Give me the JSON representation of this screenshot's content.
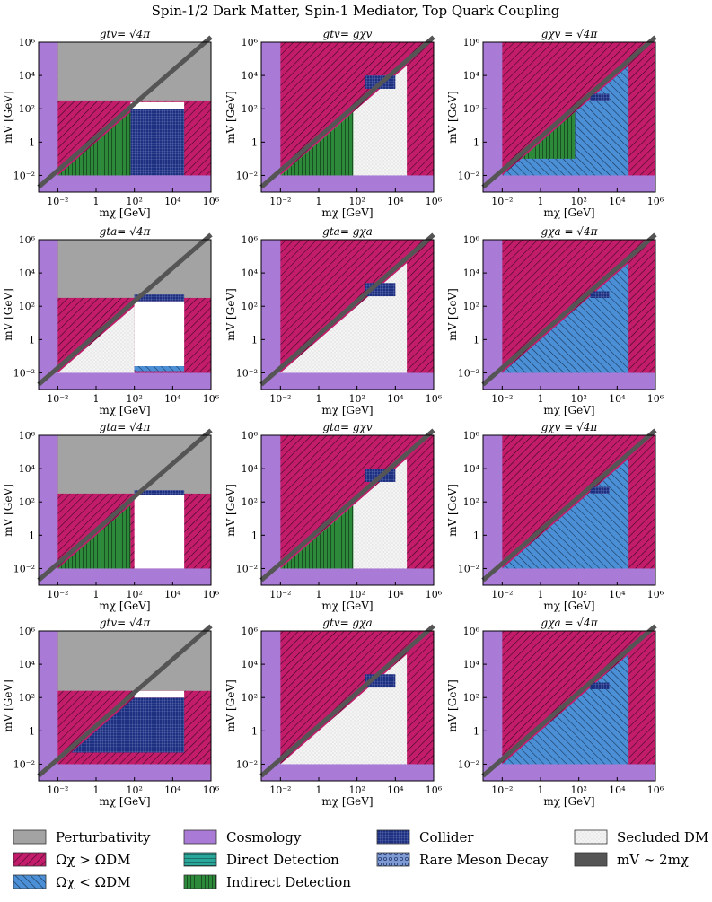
{
  "figure": {
    "title": "Spin-1/2 Dark Matter, Spin-1 Mediator, Top Quark Coupling"
  },
  "colors": {
    "perturbativity": "#a3a3a3",
    "overabundant": "#c21c6b",
    "underabundant": "#4b8fd6",
    "cosmology": "#a97bd6",
    "direct": "#2aa79b",
    "indirect": "#2d8a3a",
    "collider": "#1d2f80",
    "meson": "#7f9bd6",
    "secluded": "#e8e8e8",
    "resonance": "#555555"
  },
  "axes": {
    "xlabel": "mχ [GeV]",
    "ylabel": "mV [GeV]",
    "xticks": [
      "10⁻²",
      "1",
      "10²",
      "10⁴",
      "10⁶"
    ],
    "yticks": [
      "10⁻²",
      "1",
      "10²",
      "10⁴",
      "10⁶"
    ]
  },
  "chart_data": [
    {
      "type": "area",
      "panel": "row1-col1",
      "title": "gtv= √4π",
      "xlabel": "mχ [GeV]",
      "ylabel": "mV [GeV]",
      "xlim": [
        0.001,
        1000000
      ],
      "ylim": [
        0.001,
        1000000
      ],
      "log": true
    },
    {
      "type": "area",
      "panel": "row1-col2",
      "title": "gtv= gχv",
      "xlabel": "mχ [GeV]",
      "ylabel": "mV [GeV]",
      "xlim": [
        0.001,
        1000000
      ],
      "ylim": [
        0.001,
        1000000
      ],
      "log": true
    },
    {
      "type": "area",
      "panel": "row1-col3",
      "title": "gχv = √4π",
      "xlabel": "mχ [GeV]",
      "ylabel": "mV [GeV]",
      "xlim": [
        0.001,
        1000000
      ],
      "ylim": [
        0.001,
        1000000
      ],
      "log": true
    },
    {
      "type": "area",
      "panel": "row2-col1",
      "title": "gta= √4π",
      "xlabel": "mχ [GeV]",
      "ylabel": "mV [GeV]",
      "xlim": [
        0.001,
        1000000
      ],
      "ylim": [
        0.001,
        1000000
      ],
      "log": true
    },
    {
      "type": "area",
      "panel": "row2-col2",
      "title": "gta= gχa",
      "xlabel": "mχ [GeV]",
      "ylabel": "mV [GeV]",
      "xlim": [
        0.001,
        1000000
      ],
      "ylim": [
        0.001,
        1000000
      ],
      "log": true
    },
    {
      "type": "area",
      "panel": "row2-col3",
      "title": "gχa = √4π",
      "xlabel": "mχ [GeV]",
      "ylabel": "mV [GeV]",
      "xlim": [
        0.001,
        1000000
      ],
      "ylim": [
        0.001,
        1000000
      ],
      "log": true
    },
    {
      "type": "area",
      "panel": "row3-col1",
      "title": "gta= √4π",
      "xlabel": "mχ [GeV]",
      "ylabel": "mV [GeV]",
      "xlim": [
        0.001,
        1000000
      ],
      "ylim": [
        0.001,
        1000000
      ],
      "log": true
    },
    {
      "type": "area",
      "panel": "row3-col2",
      "title": "gta= gχv",
      "xlabel": "mχ [GeV]",
      "ylabel": "mV [GeV]",
      "xlim": [
        0.001,
        1000000
      ],
      "ylim": [
        0.001,
        1000000
      ],
      "log": true
    },
    {
      "type": "area",
      "panel": "row3-col3",
      "title": "gχv = √4π",
      "xlabel": "mχ [GeV]",
      "ylabel": "mV [GeV]",
      "xlim": [
        0.001,
        1000000
      ],
      "ylim": [
        0.001,
        1000000
      ],
      "log": true
    },
    {
      "type": "area",
      "panel": "row4-col1",
      "title": "gtv= √4π",
      "xlabel": "mχ [GeV]",
      "ylabel": "mV [GeV]",
      "xlim": [
        0.001,
        1000000
      ],
      "ylim": [
        0.001,
        1000000
      ],
      "log": true
    },
    {
      "type": "area",
      "panel": "row4-col2",
      "title": "gtv= gχa",
      "xlabel": "mχ [GeV]",
      "ylabel": "mV [GeV]",
      "xlim": [
        0.001,
        1000000
      ],
      "ylim": [
        0.001,
        1000000
      ],
      "log": true
    },
    {
      "type": "area",
      "panel": "row4-col3",
      "title": "gχa = √4π",
      "xlabel": "mχ [GeV]",
      "ylabel": "mV [GeV]",
      "xlim": [
        0.001,
        1000000
      ],
      "ylim": [
        0.001,
        1000000
      ],
      "log": true
    }
  ],
  "legend": [
    {
      "key": "perturbativity",
      "label": "Perturbativity"
    },
    {
      "key": "overabundant",
      "label": "Ωχ > ΩDM"
    },
    {
      "key": "underabundant",
      "label": "Ωχ < ΩDM"
    },
    {
      "key": "cosmology",
      "label": "Cosmology"
    },
    {
      "key": "direct",
      "label": "Direct Detection"
    },
    {
      "key": "indirect",
      "label": "Indirect Detection"
    },
    {
      "key": "collider",
      "label": "Collider"
    },
    {
      "key": "meson",
      "label": "Rare Meson Decay"
    },
    {
      "key": "secluded",
      "label": "Secluded DM"
    },
    {
      "key": "resonance",
      "label": "mV ∼ 2mχ"
    }
  ]
}
